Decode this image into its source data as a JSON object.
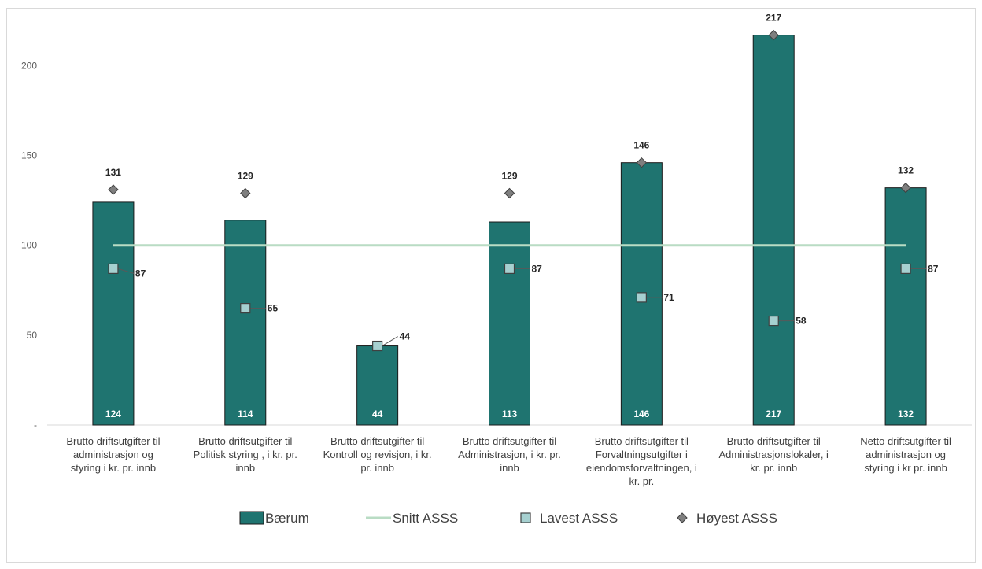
{
  "chart_data": {
    "type": "bar",
    "categories": [
      [
        "Brutto driftsutgifter til",
        "administrasjon og",
        "styring i kr. pr. innb"
      ],
      [
        "Brutto driftsutgifter til",
        "Politisk styring , i kr. pr.",
        "innb"
      ],
      [
        "Brutto driftsutgifter til",
        "Kontroll og revisjon, i kr.",
        "pr. innb"
      ],
      [
        "Brutto driftsutgifter til",
        "Administrasjon, i kr. pr.",
        "innb"
      ],
      [
        "Brutto driftsutgifter til",
        "Forvaltningsutgifter i",
        "eiendomsforvaltningen, i",
        "kr. pr."
      ],
      [
        "Brutto driftsutgifter til",
        "Administrasjonslokaler, i",
        "kr. pr. innb"
      ],
      [
        "Netto driftsutgifter til",
        "administrasjon og",
        "styring i kr pr. innb"
      ]
    ],
    "series": [
      {
        "name": "Bærum",
        "kind": "bar",
        "values": [
          124,
          114,
          44,
          113,
          146,
          217,
          132
        ],
        "color": "#1f7470"
      },
      {
        "name": "Snitt ASSS",
        "kind": "line",
        "values": [
          100,
          100,
          100,
          100,
          100,
          100,
          100
        ],
        "color": "#b9dcc4"
      },
      {
        "name": "Lavest ASSS",
        "kind": "marker-square",
        "values": [
          87,
          65,
          44,
          87,
          71,
          58,
          87
        ],
        "color": "#a6d0d0"
      },
      {
        "name": "Høyest ASSS",
        "kind": "marker-diamond",
        "values": [
          131,
          129,
          null,
          129,
          146,
          217,
          132
        ],
        "color": "#7f7f7f"
      }
    ],
    "bar_labels": [
      "124",
      "114",
      "44",
      "113",
      "146",
      "217",
      "132"
    ],
    "low_labels": [
      "87",
      "65",
      "44",
      "87",
      "71",
      "58",
      "87"
    ],
    "high_labels": [
      "131",
      "129",
      "",
      "129",
      "146",
      "217",
      "132"
    ],
    "y_ticks": [
      {
        "value": 0,
        "label": "-"
      },
      {
        "value": 50,
        "label": "50"
      },
      {
        "value": 100,
        "label": "100"
      },
      {
        "value": 150,
        "label": "150"
      },
      {
        "value": 200,
        "label": "200"
      }
    ],
    "ylim": [
      0,
      230
    ],
    "grid": false,
    "legend_position": "bottom"
  }
}
